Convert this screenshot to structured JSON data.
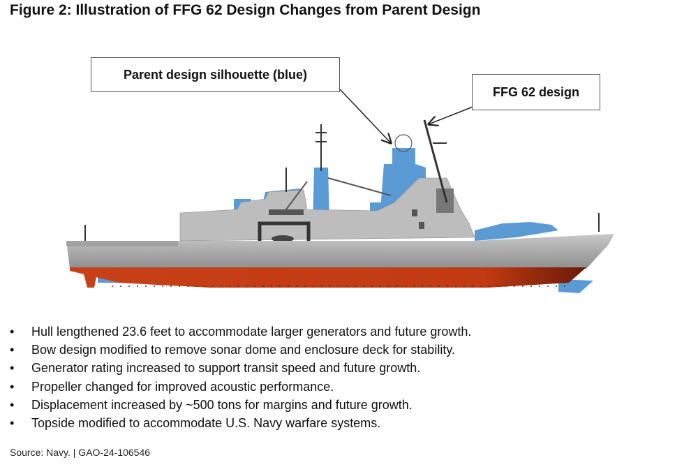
{
  "title": "Figure 2: Illustration of FFG 62 Design Changes from Parent Design",
  "callouts": {
    "parent": "Parent design silhouette (blue)",
    "ffg": "FFG 62 design"
  },
  "colors": {
    "parent_silhouette": "#5b9bd5",
    "hull_grey": "#b4b4b4",
    "hull_red": "#c8401a"
  },
  "bullets": [
    "Hull lengthened 23.6 feet to accommodate larger generators and future growth.",
    "Bow design modified to remove sonar dome and enclosure deck for stability.",
    "Generator rating increased to support transit speed and future growth.",
    "Propeller changed for improved acoustic performance.",
    "Displacement increased by ~500 tons for margins and future growth.",
    "Topside modified to accommodate U.S. Navy warfare systems."
  ],
  "source": "Source: Navy.  |  GAO-24-106546"
}
